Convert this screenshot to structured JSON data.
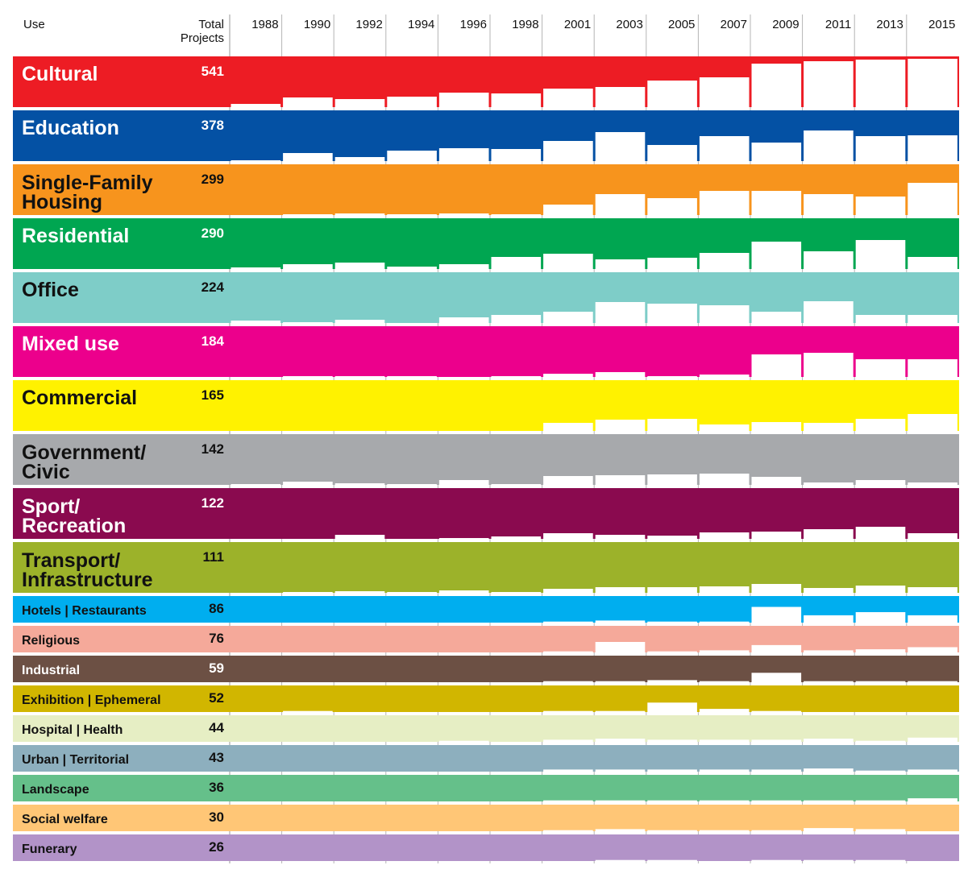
{
  "chart_data": {
    "type": "bar",
    "layout": "small-multiples-matrix",
    "headers": {
      "use": "Use",
      "total_line1": "Total",
      "total_line2": "Projects"
    },
    "years": [
      "1988",
      "1990",
      "1992",
      "1994",
      "1996",
      "1998",
      "2001",
      "2003",
      "2005",
      "2007",
      "2009",
      "2011",
      "2013",
      "2015"
    ],
    "grid": true,
    "series": [
      {
        "name": "Cultural",
        "lines": [
          "Cultural"
        ],
        "total": "541",
        "color": "#ED1C24",
        "text_color": "#ffffff",
        "big": true,
        "values": [
          4,
          12,
          10,
          13,
          18,
          17,
          23,
          25,
          33,
          37,
          54,
          57,
          59,
          60
        ]
      },
      {
        "name": "Education",
        "lines": [
          "Education"
        ],
        "total": "378",
        "color": "#0451A4",
        "text_color": "#ffffff",
        "big": true,
        "values": [
          1,
          10,
          5,
          13,
          16,
          15,
          25,
          36,
          20,
          31,
          23,
          38,
          31,
          32
        ]
      },
      {
        "name": "Single-Family Housing",
        "lines": [
          "Single-Family",
          "Housing"
        ],
        "total": "299",
        "color": "#F7941D",
        "text_color": "#111111",
        "big": true,
        "values": [
          0,
          1,
          2,
          1,
          2,
          1,
          13,
          26,
          21,
          30,
          30,
          26,
          23,
          40
        ]
      },
      {
        "name": "Residential",
        "lines": [
          "Residential"
        ],
        "total": "290",
        "color": "#00A651",
        "text_color": "#ffffff",
        "big": true,
        "values": [
          2,
          6,
          8,
          3,
          6,
          15,
          19,
          12,
          14,
          20,
          34,
          22,
          36,
          15
        ]
      },
      {
        "name": "Office",
        "lines": [
          "Office"
        ],
        "total": "224",
        "color": "#7ECDC8",
        "text_color": "#111111",
        "big": true,
        "values": [
          3,
          1,
          4,
          0,
          7,
          10,
          14,
          26,
          24,
          22,
          14,
          27,
          10,
          10
        ]
      },
      {
        "name": "Mixed use",
        "lines": [
          "Mixed use"
        ],
        "total": "184",
        "color": "#EC008C",
        "text_color": "#ffffff",
        "big": true,
        "values": [
          0,
          1,
          1,
          1,
          0,
          1,
          4,
          6,
          1,
          3,
          28,
          30,
          22,
          22
        ]
      },
      {
        "name": "Commercial",
        "lines": [
          "Commercial"
        ],
        "total": "165",
        "color": "#FFF200",
        "text_color": "#111111",
        "big": true,
        "values": [
          0,
          0,
          0,
          0,
          0,
          0,
          10,
          14,
          15,
          8,
          11,
          10,
          15,
          21
        ]
      },
      {
        "name": "Government/ Civic",
        "lines": [
          "Government/",
          "Civic"
        ],
        "total": "142",
        "color": "#A7A9AC",
        "text_color": "#111111",
        "big": true,
        "values": [
          1,
          4,
          2,
          1,
          6,
          1,
          11,
          12,
          13,
          14,
          10,
          3,
          6,
          3
        ]
      },
      {
        "name": "Sport/ Recreation",
        "lines": [
          "Sport/",
          "Recreation"
        ],
        "total": "122",
        "color": "#8A0A4F",
        "text_color": "#ffffff",
        "big": true,
        "values": [
          0,
          0,
          5,
          0,
          1,
          3,
          7,
          5,
          4,
          8,
          9,
          12,
          15,
          7
        ]
      },
      {
        "name": "Transport/ Infrastructure",
        "lines": [
          "Transport/",
          "Infrastructure"
        ],
        "total": "111",
        "color": "#9CB22A",
        "text_color": "#111111",
        "big": true,
        "values": [
          0,
          1,
          2,
          1,
          3,
          1,
          5,
          7,
          7,
          8,
          11,
          6,
          9,
          7
        ]
      },
      {
        "name": "Hotels | Restaurants",
        "lines": [
          "Hotels | Restaurants"
        ],
        "total": "86",
        "color": "#00AEEF",
        "text_color": "#111111",
        "big": false,
        "values": [
          0,
          0,
          0,
          0,
          0,
          0,
          1,
          2,
          1,
          1,
          15,
          7,
          10,
          7
        ]
      },
      {
        "name": "Religious",
        "lines": [
          "Religious"
        ],
        "total": "76",
        "color": "#F5A99A",
        "text_color": "#111111",
        "big": false,
        "values": [
          0,
          0,
          0,
          0,
          0,
          0,
          1,
          10,
          1,
          2,
          7,
          2,
          3,
          5
        ]
      },
      {
        "name": "Industrial",
        "lines": [
          "Industrial"
        ],
        "total": "59",
        "color": "#6C5044",
        "text_color": "#ffffff",
        "big": false,
        "values": [
          0,
          0,
          0,
          0,
          0,
          0,
          1,
          1,
          2,
          1,
          9,
          1,
          1,
          1
        ]
      },
      {
        "name": "Exhibition | Ephemeral",
        "lines": [
          "Exhibition | Ephemeral"
        ],
        "total": "52",
        "color": "#D1B600",
        "text_color": "#111111",
        "big": false,
        "values": [
          0,
          1,
          0,
          0,
          0,
          0,
          1,
          1,
          9,
          3,
          1,
          0,
          0,
          0
        ]
      },
      {
        "name": "Hospital | Health",
        "lines": [
          "Hospital | Health"
        ],
        "total": "44",
        "color": "#E6EEC4",
        "text_color": "#111111",
        "big": false,
        "values": [
          0,
          0,
          0,
          0,
          1,
          0,
          2,
          3,
          2,
          2,
          2,
          3,
          1,
          4
        ]
      },
      {
        "name": "Urban | Territorial",
        "lines": [
          "Urban | Territorial"
        ],
        "total": "43",
        "color": "#8DAFBE",
        "text_color": "#111111",
        "big": false,
        "values": [
          0,
          0,
          0,
          0,
          0,
          0,
          2,
          2,
          2,
          2,
          2,
          3,
          1,
          2
        ]
      },
      {
        "name": "Landscape",
        "lines": [
          "Landscape"
        ],
        "total": "36",
        "color": "#65C08A",
        "text_color": "#111111",
        "big": false,
        "values": [
          0,
          0,
          0,
          0,
          0,
          0,
          1,
          1,
          1,
          1,
          1,
          1,
          1,
          3
        ]
      },
      {
        "name": "Social welfare",
        "lines": [
          "Social welfare"
        ],
        "total": "30",
        "color": "#FFC676",
        "text_color": "#111111",
        "big": false,
        "values": [
          0,
          0,
          0,
          0,
          0,
          0,
          1,
          2,
          1,
          1,
          1,
          3,
          2,
          0
        ]
      },
      {
        "name": "Funerary",
        "lines": [
          "Funerary"
        ],
        "total": "26",
        "color": "#B293C8",
        "text_color": "#111111",
        "big": false,
        "values": [
          0,
          0,
          0,
          0,
          0,
          0,
          0,
          1,
          1,
          0,
          1,
          1,
          1,
          0
        ]
      }
    ]
  }
}
